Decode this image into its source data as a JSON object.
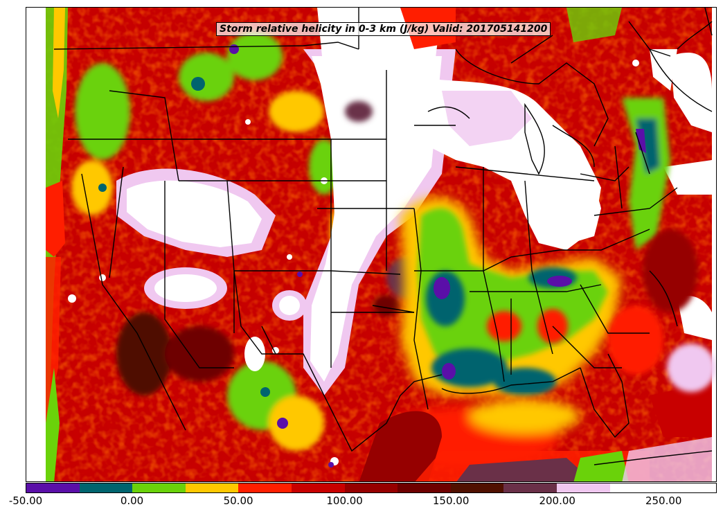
{
  "title": "Storm relative helicity in 0-3 km (J/kg) Valid: 201705141200",
  "colorbar": {
    "colors": [
      "#5a0fa8",
      "#00646e",
      "#6ad20a",
      "#ffc800",
      "#ff1e00",
      "#c80000",
      "#960000",
      "#6e0000",
      "#501000",
      "#6a3048",
      "#f0c8f0",
      "#ffffff",
      "#ffffff"
    ],
    "tick_labels": [
      "-50.00",
      "0.00",
      "50.00",
      "100.00",
      "150.00",
      "200.00",
      "250.00"
    ]
  },
  "chart_data": {
    "type": "heatmap",
    "title": "Storm relative helicity in 0-3 km (J/kg) Valid: 201705141200",
    "variable": "Storm relative helicity 0-3 km",
    "units": "J/kg",
    "valid_time": "201705141200",
    "levels": [
      -50,
      -25,
      0,
      25,
      50,
      75,
      100,
      125,
      150,
      175,
      200,
      225,
      250,
      275
    ],
    "colorbar_range": [
      -50,
      275
    ]
  }
}
